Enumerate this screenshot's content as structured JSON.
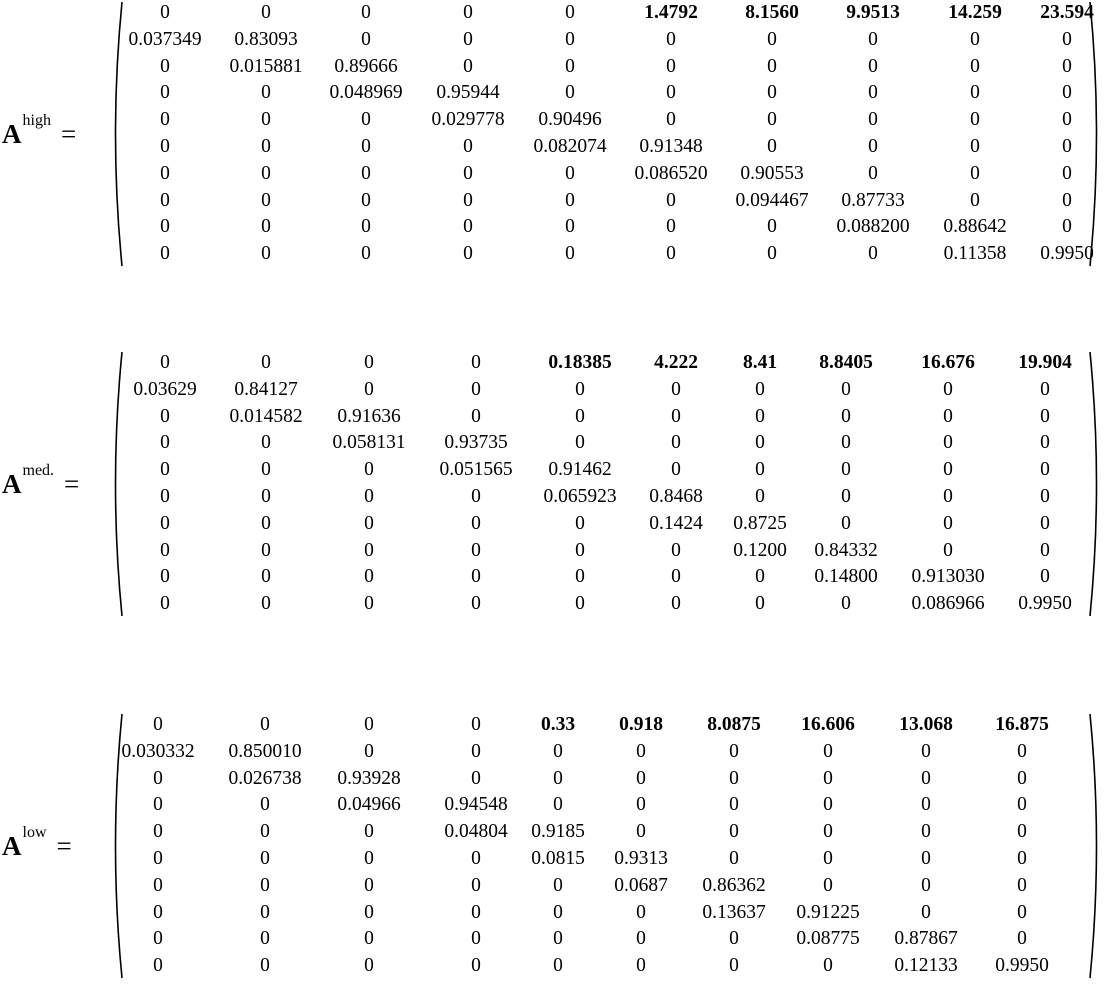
{
  "equations": [
    {
      "letter": "A",
      "superscript": "high",
      "equals": "=",
      "rows": [
        [
          "0",
          "0",
          "0",
          "0",
          "0",
          "1.4792",
          "8.1560",
          "9.9513",
          "14.259",
          "23.594"
        ],
        [
          "0.037349",
          "0.83093",
          "0",
          "0",
          "0",
          "0",
          "0",
          "0",
          "0",
          "0"
        ],
        [
          "0",
          "0.015881",
          "0.89666",
          "0",
          "0",
          "0",
          "0",
          "0",
          "0",
          "0"
        ],
        [
          "0",
          "0",
          "0.048969",
          "0.95944",
          "0",
          "0",
          "0",
          "0",
          "0",
          "0"
        ],
        [
          "0",
          "0",
          "0",
          "0.029778",
          "0.90496",
          "0",
          "0",
          "0",
          "0",
          "0"
        ],
        [
          "0",
          "0",
          "0",
          "0",
          "0.082074",
          "0.91348",
          "0",
          "0",
          "0",
          "0"
        ],
        [
          "0",
          "0",
          "0",
          "0",
          "0",
          "0.086520",
          "0.90553",
          "0",
          "0",
          "0"
        ],
        [
          "0",
          "0",
          "0",
          "0",
          "0",
          "0",
          "0.094467",
          "0.87733",
          "0",
          "0"
        ],
        [
          "0",
          "0",
          "0",
          "0",
          "0",
          "0",
          "0",
          "0.088200",
          "0.88642",
          "0"
        ],
        [
          "0",
          "0",
          "0",
          "0",
          "0",
          "0",
          "0",
          "0",
          "0.11358",
          "0.9950"
        ]
      ]
    },
    {
      "letter": "A",
      "superscript": "med.",
      "equals": "=",
      "rows": [
        [
          "0",
          "0",
          "0",
          "0",
          "0.18385",
          "4.222",
          "8.41",
          "8.8405",
          "16.676",
          "19.904"
        ],
        [
          "0.03629",
          "0.84127",
          "0",
          "0",
          "0",
          "0",
          "0",
          "0",
          "0",
          "0"
        ],
        [
          "0",
          "0.014582",
          "0.91636",
          "0",
          "0",
          "0",
          "0",
          "0",
          "0",
          "0"
        ],
        [
          "0",
          "0",
          "0.058131",
          "0.93735",
          "0",
          "0",
          "0",
          "0",
          "0",
          "0"
        ],
        [
          "0",
          "0",
          "0",
          "0.051565",
          "0.91462",
          "0",
          "0",
          "0",
          "0",
          "0"
        ],
        [
          "0",
          "0",
          "0",
          "0",
          "0.065923",
          "0.8468",
          "0",
          "0",
          "0",
          "0"
        ],
        [
          "0",
          "0",
          "0",
          "0",
          "0",
          "0.1424",
          "0.8725",
          "0",
          "0",
          "0"
        ],
        [
          "0",
          "0",
          "0",
          "0",
          "0",
          "0",
          "0.1200",
          "0.84332",
          "0",
          "0"
        ],
        [
          "0",
          "0",
          "0",
          "0",
          "0",
          "0",
          "0",
          "0.14800",
          "0.913030",
          "0"
        ],
        [
          "0",
          "0",
          "0",
          "0",
          "0",
          "0",
          "0",
          "0",
          "0.086966",
          "0.9950"
        ]
      ]
    },
    {
      "letter": "A",
      "superscript": "low",
      "equals": "=",
      "rows": [
        [
          "0",
          "0",
          "0",
          "0",
          "0.33",
          "0.918",
          "8.0875",
          "16.606",
          "13.068",
          "16.875"
        ],
        [
          "0.030332",
          "0.850010",
          "0",
          "0",
          "0",
          "0",
          "0",
          "0",
          "0",
          "0"
        ],
        [
          "0",
          "0.026738",
          "0.93928",
          "0",
          "0",
          "0",
          "0",
          "0",
          "0",
          "0"
        ],
        [
          "0",
          "0",
          "0.04966",
          "0.94548",
          "0",
          "0",
          "0",
          "0",
          "0",
          "0"
        ],
        [
          "0",
          "0",
          "0",
          "0.04804",
          "0.9185",
          "0",
          "0",
          "0",
          "0",
          "0"
        ],
        [
          "0",
          "0",
          "0",
          "0",
          "0.0815",
          "0.9313",
          "0",
          "0",
          "0",
          "0"
        ],
        [
          "0",
          "0",
          "0",
          "0",
          "0",
          "0.0687",
          "0.86362",
          "0",
          "0",
          "0"
        ],
        [
          "0",
          "0",
          "0",
          "0",
          "0",
          "0",
          "0.13637",
          "0.91225",
          "0",
          "0"
        ],
        [
          "0",
          "0",
          "0",
          "0",
          "0",
          "0",
          "0",
          "0.08775",
          "0.87867",
          "0"
        ],
        [
          "0",
          "0",
          "0",
          "0",
          "0",
          "0",
          "0",
          "0",
          "0.12133",
          "0.9950"
        ]
      ]
    }
  ]
}
